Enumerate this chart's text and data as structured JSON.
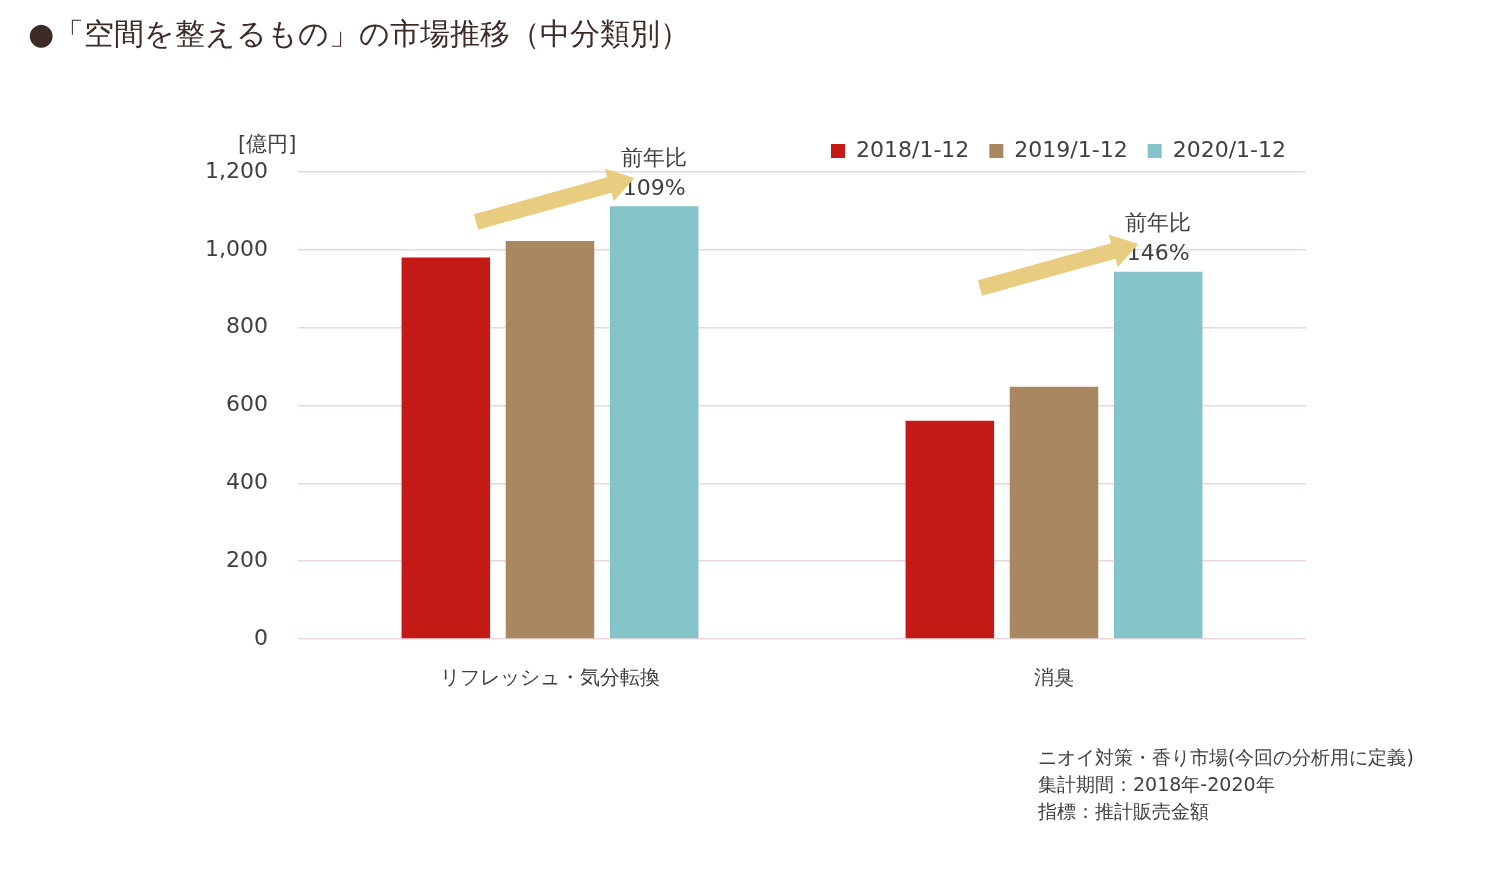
{
  "chart_data": {
    "type": "bar",
    "title": "●「空間を整えるもの」の市場推移（中分類別）",
    "ylabel": "[億円]",
    "categories": [
      "リフレッシュ・気分転換",
      "消臭"
    ],
    "series": [
      {
        "name": "2018/1-12",
        "color": "#c41a16",
        "values": [
          980,
          561
        ]
      },
      {
        "name": "2019/1-12",
        "color": "#a98760",
        "values": [
          1023,
          648
        ]
      },
      {
        "name": "2020/1-12",
        "color": "#84c3c8",
        "values": [
          1112,
          944
        ]
      }
    ],
    "ylim": [
      0,
      1200
    ],
    "yticks": [
      0,
      200,
      400,
      600,
      800,
      {
        "value": 1000,
        "label": "1,000"
      },
      {
        "value": 1200,
        "label": "1,200"
      }
    ],
    "grid": "y",
    "legend": "top right",
    "annotations": [
      "前年比\n109%",
      "前年比\n146%",
      "ニオイ対策・香り市場(今回の分析用に定義)",
      "集計期間：2018年-2020年",
      "指標：推計販売金額"
    ]
  }
}
